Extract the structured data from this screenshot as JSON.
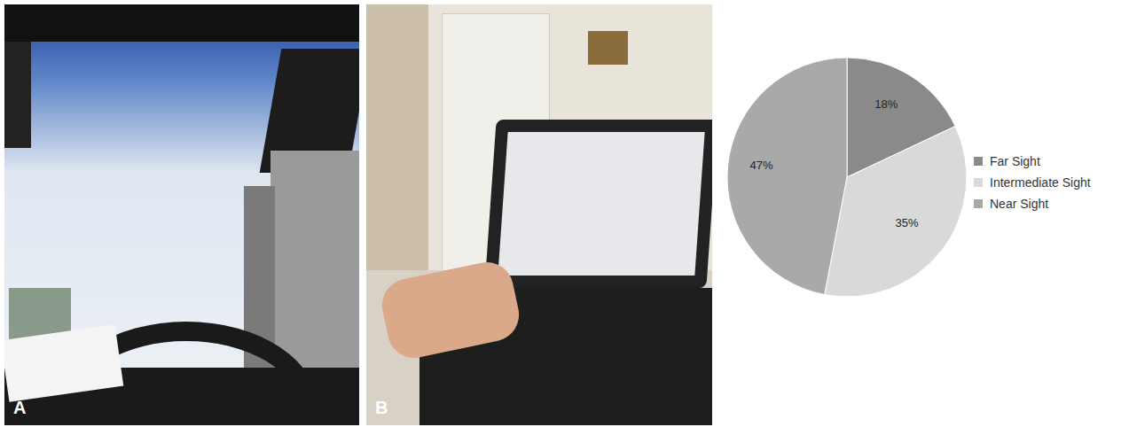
{
  "panel_labels": [
    "A",
    "B"
  ],
  "chart_data": {
    "type": "pie",
    "categories": [
      "Far Sight",
      "Intermediate Sight",
      "Near Sight"
    ],
    "values": [
      18,
      35,
      47
    ],
    "value_labels": [
      "18%",
      "35%",
      "47%"
    ],
    "colors": [
      "#8a8a8a",
      "#d9d9d9",
      "#a9a9a9"
    ],
    "data_labels": true,
    "legend": "right"
  }
}
